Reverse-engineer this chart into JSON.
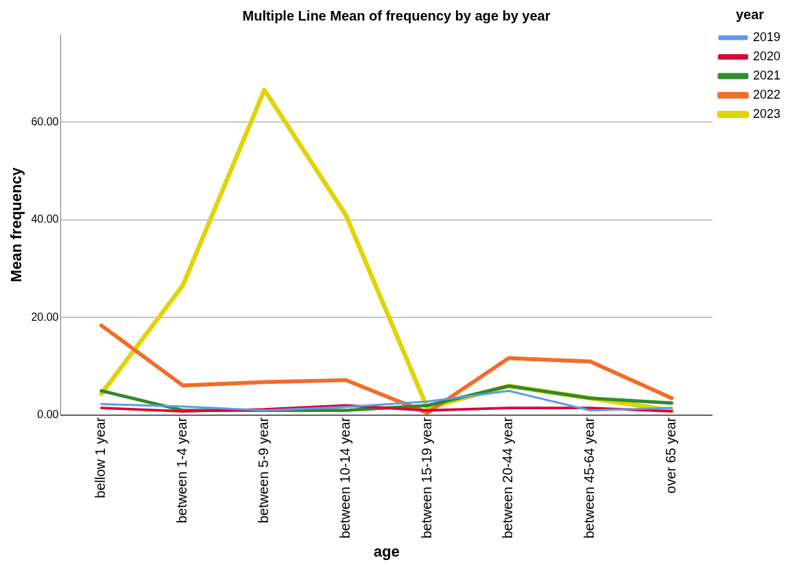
{
  "chart_data": {
    "type": "line",
    "title": "Multiple Line Mean of frequency by age by year",
    "xlabel": "age",
    "ylabel": "Mean frequency",
    "legend_title": "year",
    "legend": "right",
    "grid": "y",
    "marker": "none",
    "line_style": "solid",
    "categories": [
      "bellow 1 year",
      "between 1-4 year",
      "between 5-9 year",
      "between 10-14 year",
      "between 15-19 year",
      "between 20-44 year",
      "between 45-64 year",
      "over 65 year"
    ],
    "ylim": [
      0,
      78
    ],
    "yticks": [
      {
        "value": 0,
        "label": "0.00"
      },
      {
        "value": 20,
        "label": "20.00"
      },
      {
        "value": 40,
        "label": "40.00"
      },
      {
        "value": 60,
        "label": "60.00"
      }
    ],
    "series": [
      {
        "name": "2019",
        "color": "#5b9bea",
        "values": [
          2.3,
          1.8,
          1,
          1.7,
          2.8,
          5,
          1,
          1.5
        ]
      },
      {
        "name": "2020",
        "color": "#d8083a",
        "values": [
          1.5,
          0.8,
          1.2,
          2,
          1,
          1.5,
          1.5,
          0.8
        ]
      },
      {
        "name": "2021",
        "color": "#2e8b2e",
        "values": [
          5,
          1,
          1,
          1,
          2,
          6,
          3.5,
          2.5
        ]
      },
      {
        "name": "2022",
        "color": "#f26c2a",
        "values": [
          18.4,
          6.1,
          6.8,
          7.2,
          0.5,
          11.7,
          11,
          3.5
        ]
      },
      {
        "name": "2023",
        "color": "#e0d40a",
        "values": [
          4.4,
          26.6,
          66.6,
          41,
          1.5,
          6,
          3.5,
          1
        ]
      }
    ]
  }
}
